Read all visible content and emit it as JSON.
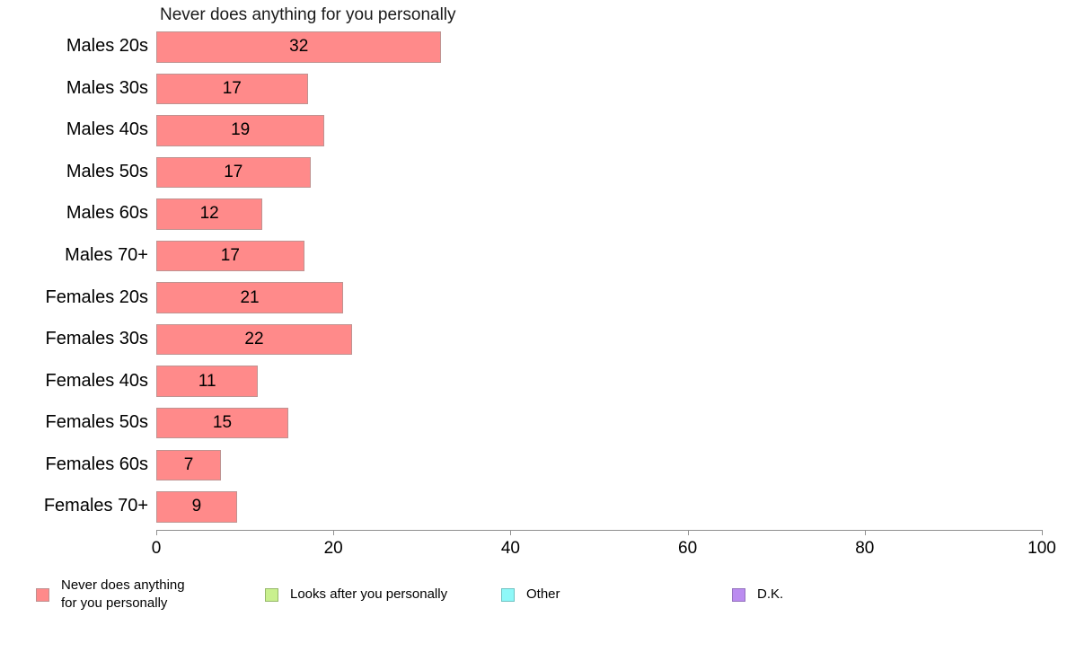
{
  "chart_data": {
    "type": "bar",
    "orientation": "horizontal",
    "title": "Never does anything for you personally",
    "categories": [
      "Males 20s",
      "Males 30s",
      "Males 40s",
      "Males 50s",
      "Males 60s",
      "Males 70+",
      "Females 20s",
      "Females 30s",
      "Females 40s",
      "Females 50s",
      "Females 60s",
      "Females 70+"
    ],
    "values": [
      32,
      17,
      19,
      17,
      12,
      17,
      21,
      22,
      11,
      15,
      7,
      9
    ],
    "bar_lengths_pct": [
      32.2,
      17.1,
      19.0,
      17.4,
      12.0,
      16.7,
      21.1,
      22.1,
      11.5,
      14.9,
      7.3,
      9.1
    ],
    "xlabel": "",
    "ylabel": "",
    "xlim": [
      0,
      100
    ],
    "x_ticks": [
      0,
      20,
      40,
      60,
      80,
      100
    ],
    "grid": false,
    "value_labels_shown": true,
    "bar_fill_color": "#ff8a8a",
    "bar_border_color": "#bf9391",
    "axis_color": "#909090",
    "legend_position": "bottom"
  },
  "legend": {
    "items": [
      {
        "label": "Never does anything\nfor you personally",
        "fill": "#ff8a8a",
        "border": "#bf8f8f"
      },
      {
        "label": "Looks after you personally",
        "fill": "#c9f08e",
        "border": "#96b86a"
      },
      {
        "label": "Other",
        "fill": "#8ef8f8",
        "border": "#6fc2c2"
      },
      {
        "label": "D.K.",
        "fill": "#bb8cf0",
        "border": "#9371bd"
      }
    ]
  }
}
